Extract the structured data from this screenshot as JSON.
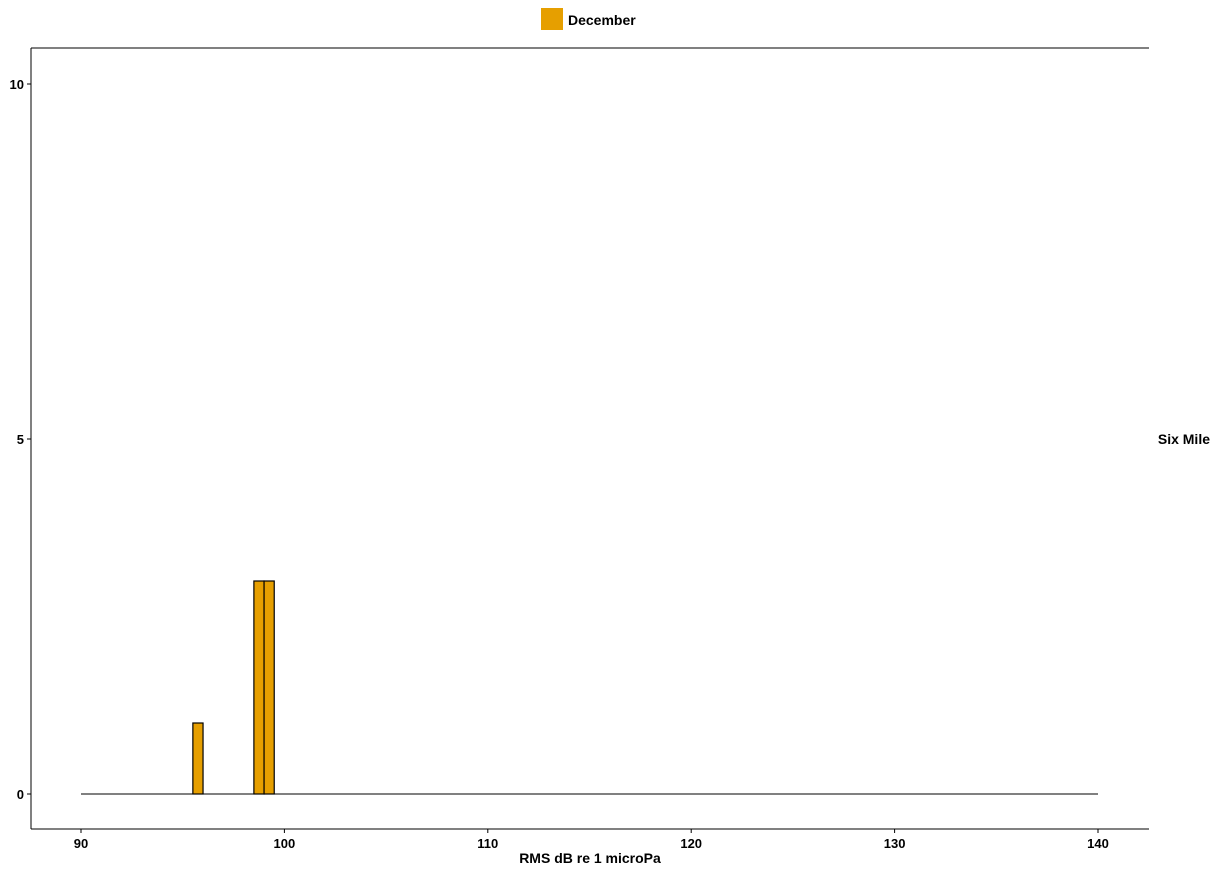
{
  "chart_data": {
    "type": "bar",
    "xlabel": "RMS dB re 1 microPa",
    "ylabel": "",
    "facet_label": "Six Mile",
    "xlim": [
      90,
      140
    ],
    "ylim": [
      0,
      10
    ],
    "x_ticks": [
      90,
      100,
      110,
      120,
      130,
      140
    ],
    "y_ticks": [
      0,
      5,
      10
    ],
    "bin_width": 0.5,
    "legend": {
      "position": "top",
      "entries": [
        {
          "label": "December",
          "color": "#E69F00"
        }
      ]
    },
    "series": [
      {
        "name": "December",
        "color": "#E69F00",
        "bins": [
          {
            "x": 95.75,
            "value": 1
          },
          {
            "x": 98.75,
            "value": 3
          },
          {
            "x": 99.25,
            "value": 3
          }
        ]
      }
    ],
    "baseline_range": [
      90,
      140
    ],
    "grid": false
  }
}
